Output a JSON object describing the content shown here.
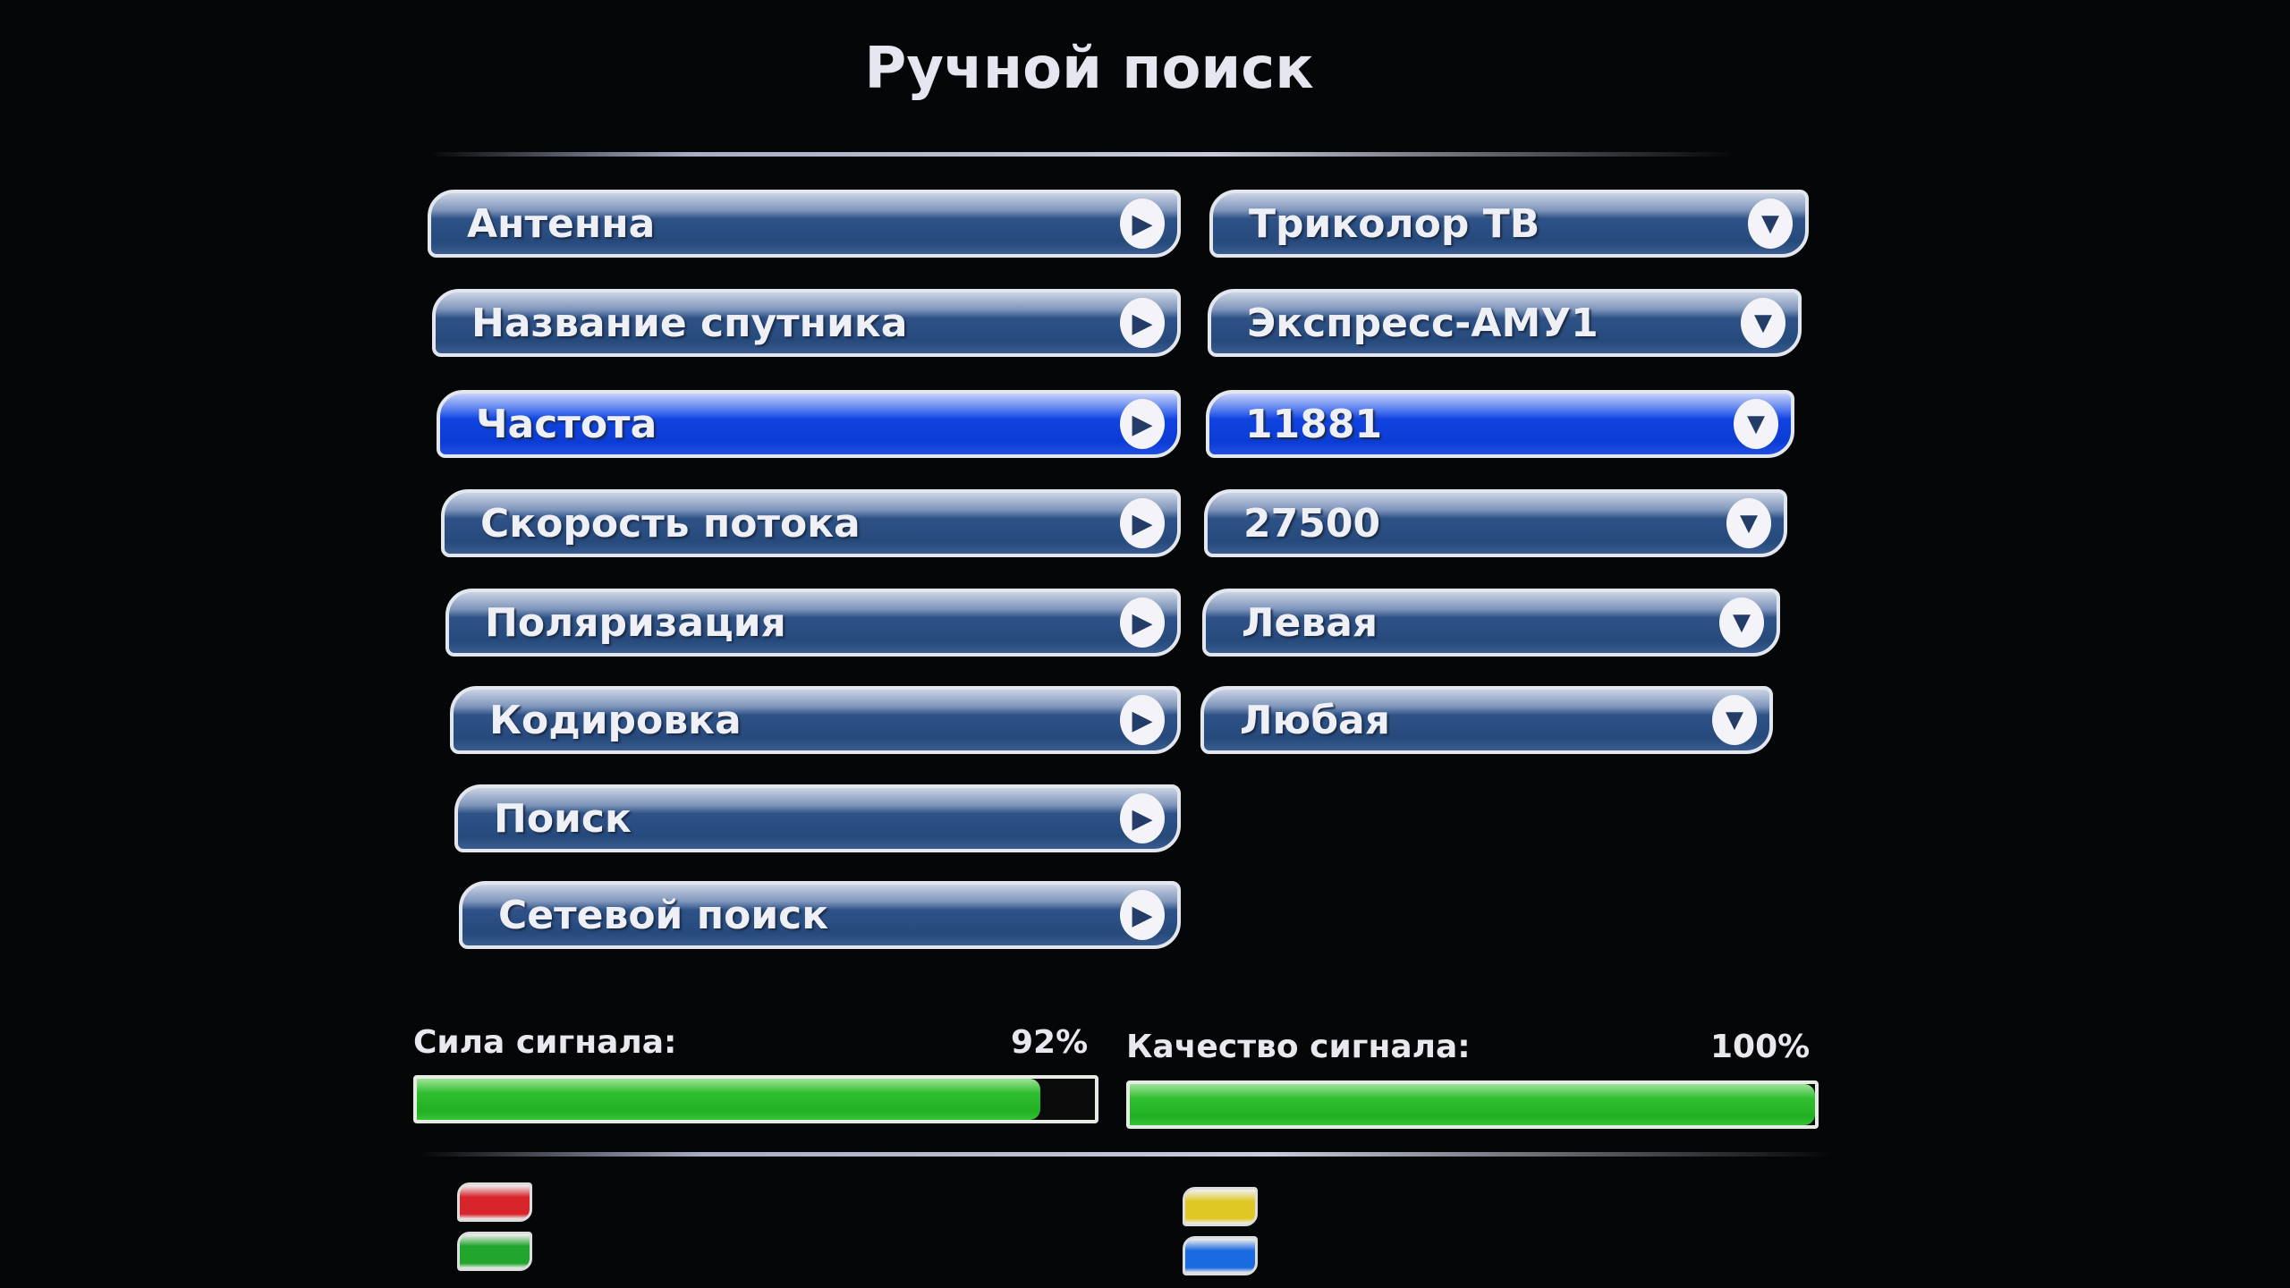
{
  "title": "Ручной поиск",
  "menu": [
    {
      "label": "Антенна",
      "value": "Триколор ТВ",
      "selected": false
    },
    {
      "label": "Название спутника",
      "value": "Экспресс-АМУ1",
      "selected": false
    },
    {
      "label": "Частота",
      "value": "11881",
      "selected": true
    },
    {
      "label": "Скорость потока",
      "value": "27500",
      "selected": false
    },
    {
      "label": "Поляризация",
      "value": "Левая",
      "selected": false
    },
    {
      "label": "Кодировка",
      "value": "Любая",
      "selected": false
    },
    {
      "label": "Поиск"
    },
    {
      "label": "Сетевой поиск"
    }
  ],
  "signal": {
    "strength_label": "Сила сигнала:",
    "strength_value": "92%",
    "strength_percent": 92,
    "quality_label": "Качество сигнала:",
    "quality_value": "100%",
    "quality_percent": 100
  },
  "color_buttons": [
    {
      "name": "red",
      "color": "#d8252c"
    },
    {
      "name": "green",
      "color": "#22a52c"
    },
    {
      "name": "yellow",
      "color": "#e0c824"
    },
    {
      "name": "blue",
      "color": "#1a6ae0"
    }
  ]
}
